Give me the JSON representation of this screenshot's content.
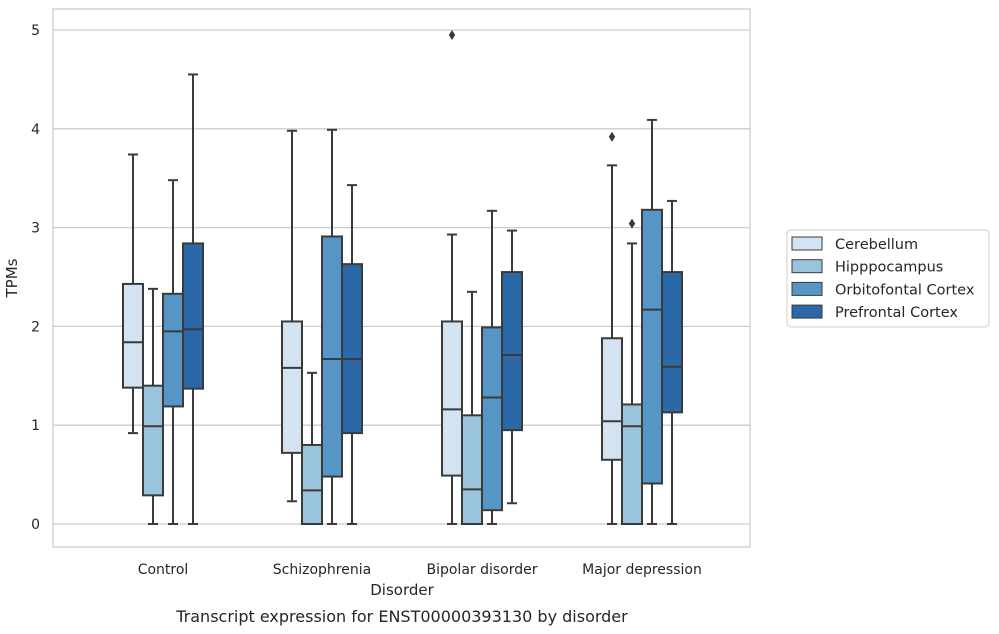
{
  "caption": "Transcript expression for ENST00000393130 by disorder",
  "chart_data": {
    "type": "box",
    "xlabel": "Disorder",
    "ylabel": "TPMs",
    "ylim": [
      -0.24,
      5.22
    ],
    "yticks": [
      0,
      1,
      2,
      3,
      4,
      5
    ],
    "grid": "horizontal",
    "legend_position": "right",
    "categories": [
      "Control",
      "Schizophrenia",
      "Bipolar disorder",
      "Major depression"
    ],
    "series": [
      {
        "name": "Cerebellum",
        "color": "#d3e3f2",
        "boxes": [
          {
            "whisker_low": 0.92,
            "q1": 1.38,
            "median": 1.84,
            "q3": 2.43,
            "whisker_high": 3.74,
            "outliers": []
          },
          {
            "whisker_low": 0.23,
            "q1": 0.72,
            "median": 1.58,
            "q3": 2.05,
            "whisker_high": 3.98,
            "outliers": []
          },
          {
            "whisker_low": 0.0,
            "q1": 0.49,
            "median": 1.16,
            "q3": 2.05,
            "whisker_high": 2.93,
            "outliers": [
              4.95
            ]
          },
          {
            "whisker_low": 0.0,
            "q1": 0.65,
            "median": 1.04,
            "q3": 1.88,
            "whisker_high": 3.63,
            "outliers": [
              3.92
            ]
          }
        ]
      },
      {
        "name": "Hipppocampus",
        "color": "#9ac3dc",
        "boxes": [
          {
            "whisker_low": 0.0,
            "q1": 0.29,
            "median": 0.99,
            "q3": 1.4,
            "whisker_high": 2.38,
            "outliers": []
          },
          {
            "whisker_low": 0.0,
            "q1": 0.0,
            "median": 0.34,
            "q3": 0.8,
            "whisker_high": 1.53,
            "outliers": []
          },
          {
            "whisker_low": 0.0,
            "q1": 0.0,
            "median": 0.35,
            "q3": 1.1,
            "whisker_high": 2.35,
            "outliers": []
          },
          {
            "whisker_low": 0.0,
            "q1": 0.0,
            "median": 0.99,
            "q3": 1.21,
            "whisker_high": 2.84,
            "outliers": [
              3.04
            ]
          }
        ]
      },
      {
        "name": "Orbitofontal Cortex",
        "color": "#5596c7",
        "boxes": [
          {
            "whisker_low": 0.0,
            "q1": 1.19,
            "median": 1.95,
            "q3": 2.33,
            "whisker_high": 3.48,
            "outliers": []
          },
          {
            "whisker_low": 0.0,
            "q1": 0.48,
            "median": 1.67,
            "q3": 2.91,
            "whisker_high": 3.99,
            "outliers": []
          },
          {
            "whisker_low": 0.0,
            "q1": 0.14,
            "median": 1.28,
            "q3": 1.99,
            "whisker_high": 3.17,
            "outliers": []
          },
          {
            "whisker_low": 0.0,
            "q1": 0.41,
            "median": 2.17,
            "q3": 3.18,
            "whisker_high": 4.09,
            "outliers": []
          }
        ]
      },
      {
        "name": "Prefrontal Cortex",
        "color": "#2a68a8",
        "boxes": [
          {
            "whisker_low": 0.0,
            "q1": 1.37,
            "median": 1.97,
            "q3": 2.84,
            "whisker_high": 4.55,
            "outliers": []
          },
          {
            "whisker_low": 0.0,
            "q1": 0.92,
            "median": 1.67,
            "q3": 2.63,
            "whisker_high": 3.43,
            "outliers": []
          },
          {
            "whisker_low": 0.21,
            "q1": 0.95,
            "median": 1.71,
            "q3": 2.55,
            "whisker_high": 2.97,
            "outliers": []
          },
          {
            "whisker_low": 0.0,
            "q1": 1.13,
            "median": 1.59,
            "q3": 2.55,
            "whisker_high": 3.27,
            "outliers": []
          }
        ]
      }
    ]
  }
}
